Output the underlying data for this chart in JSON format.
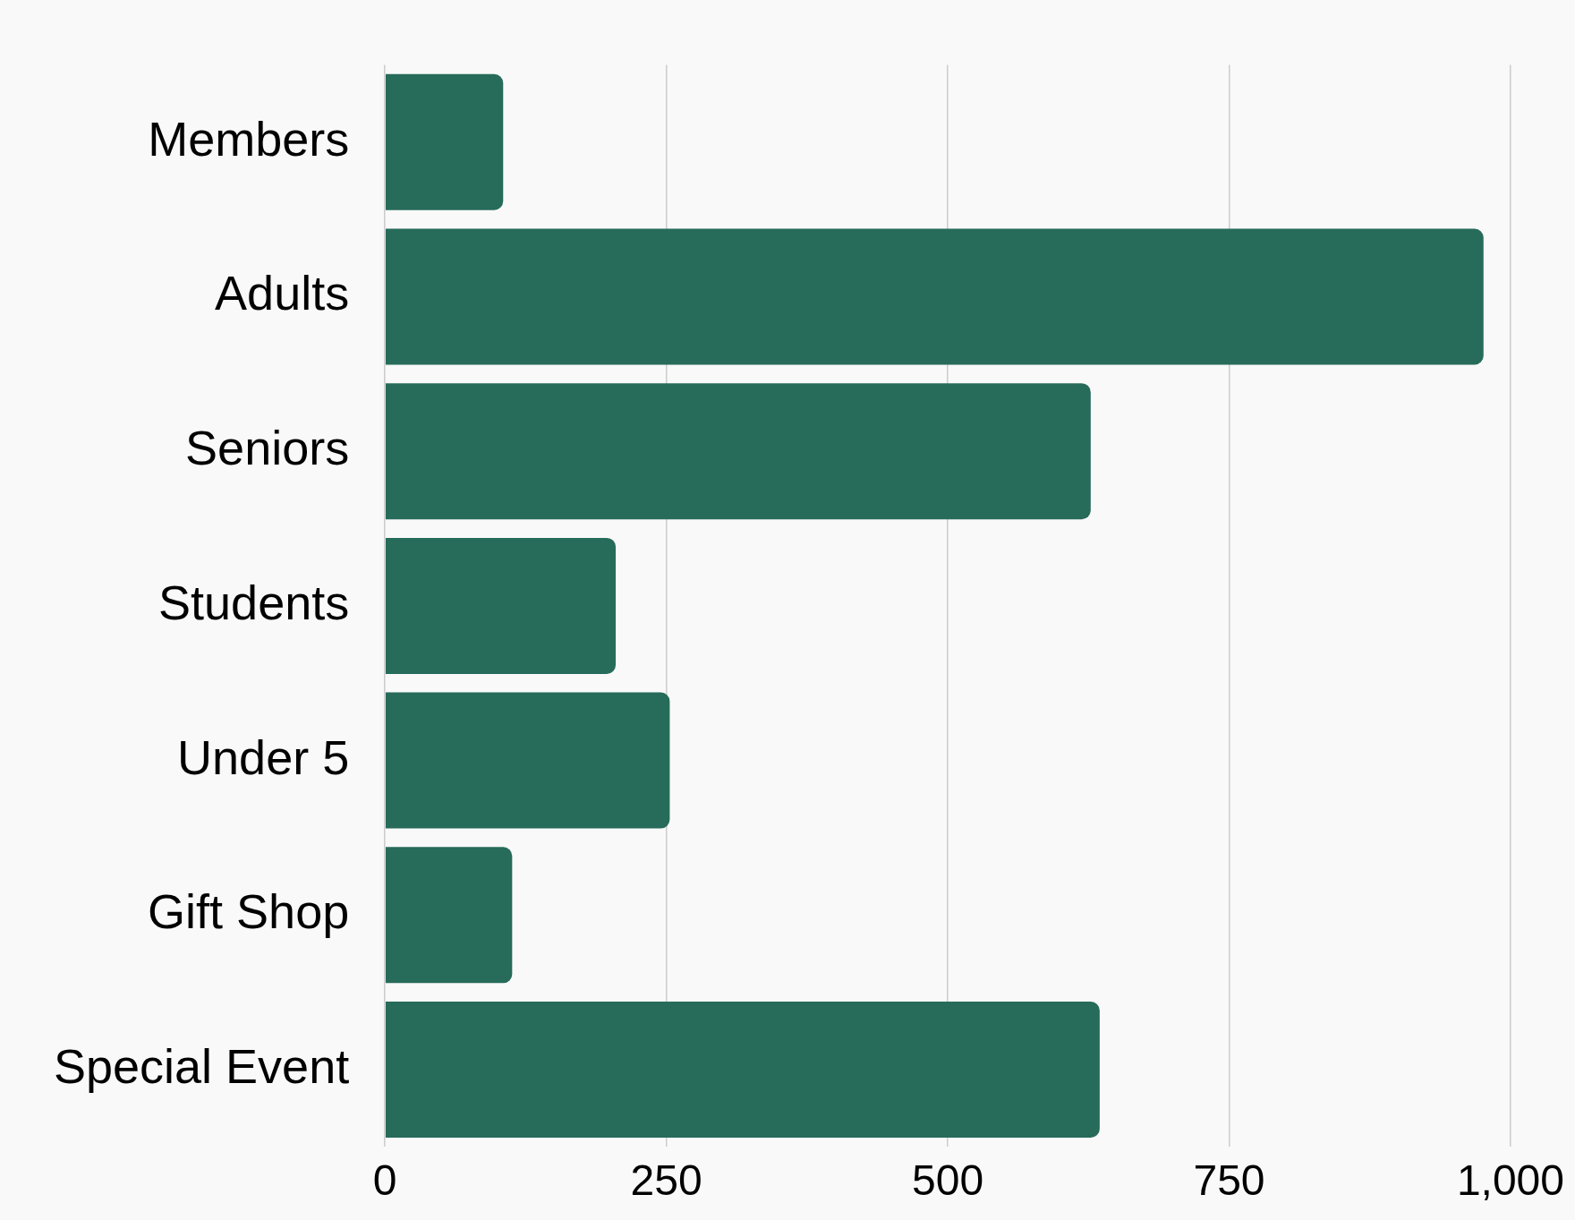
{
  "chart_data": {
    "type": "bar",
    "orientation": "horizontal",
    "categories": [
      "Members",
      "Adults",
      "Seniors",
      "Students",
      "Under 5",
      "Gift Shop",
      "Special Event"
    ],
    "values": [
      105,
      976,
      627,
      205,
      253,
      113,
      635
    ],
    "color": "#276b5a",
    "xlim": [
      0,
      1000
    ],
    "xticks": [
      0,
      250,
      500,
      750,
      {
        "value": 1000,
        "label": "1,000"
      }
    ],
    "grid": "x",
    "legend": false
  }
}
